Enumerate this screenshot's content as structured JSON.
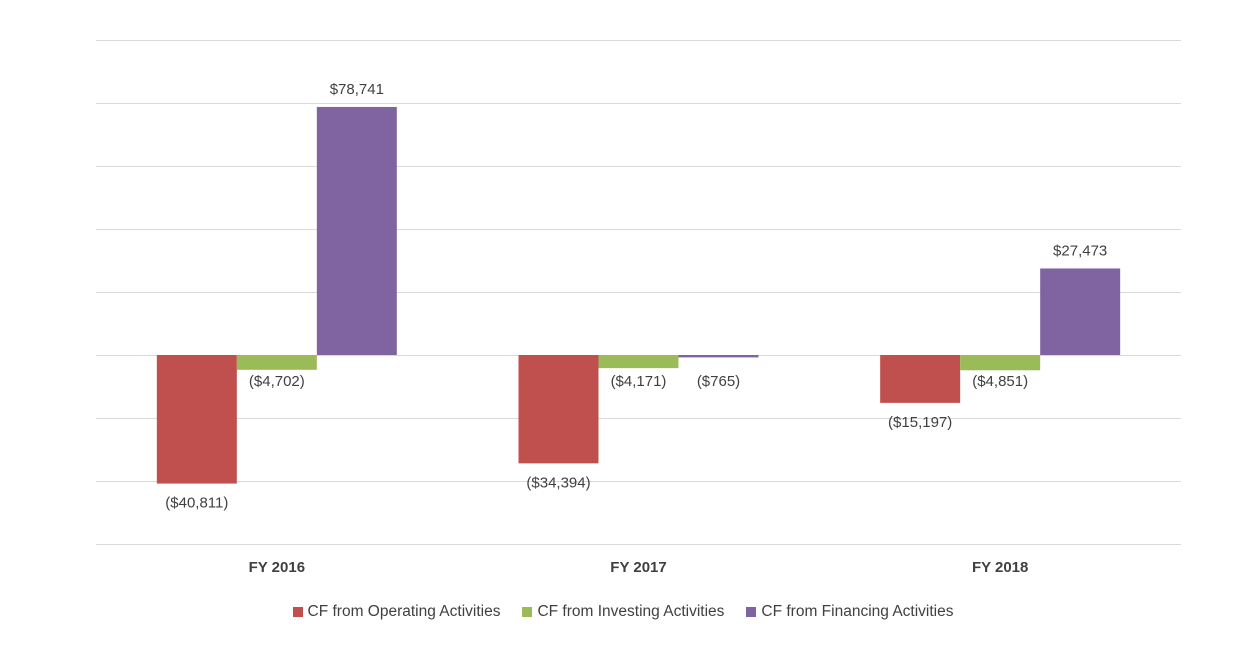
{
  "chart_data": {
    "type": "bar",
    "categories": [
      "FY 2016",
      "FY 2017",
      "FY 2018"
    ],
    "series": [
      {
        "name": "CF from Operating Activities",
        "values": [
          -40811,
          -34394,
          -15197
        ],
        "labels": [
          "($40,811)",
          "($34,394)",
          "($15,197)"
        ],
        "color": "#c0504d"
      },
      {
        "name": "CF from Investing Activities",
        "values": [
          -4702,
          -4171,
          -4851
        ],
        "labels": [
          "($4,702)",
          "($4,171)",
          "($4,851)"
        ],
        "color": "#9bbb59"
      },
      {
        "name": "CF from Financing Activities",
        "values": [
          78741,
          -765,
          27473
        ],
        "labels": [
          "$78,741",
          "($765)",
          "$27,473"
        ],
        "color": "#8064a2"
      }
    ],
    "ylim": [
      -60000,
      100000
    ],
    "grid": true,
    "legend_position": "bottom"
  }
}
